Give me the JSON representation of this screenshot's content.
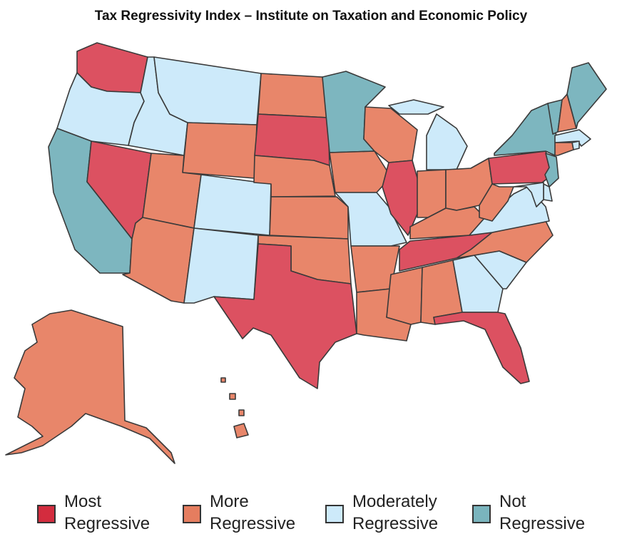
{
  "title": "Tax Regressivity Index – Institute on Taxation and Economic Policy",
  "colors": {
    "most": "#dc5161",
    "more": "#e8866a",
    "moderately": "#cdeafa",
    "not": "#7db6bf"
  },
  "legend": [
    {
      "key": "most",
      "line1": "Most",
      "line2": "Regressive",
      "color": "#d32c3e"
    },
    {
      "key": "more",
      "line1": "More",
      "line2": "Regressive",
      "color": "#e57d5f"
    },
    {
      "key": "moderately",
      "line1": "Moderately",
      "line2": "Regressive",
      "color": "#cdeafa"
    },
    {
      "key": "not",
      "line1": "Not",
      "line2": "Regressive",
      "color": "#7ab4bd"
    }
  ],
  "states": {
    "WA": "most",
    "OR": "moderately",
    "CA": "not",
    "NV": "most",
    "ID": "moderately",
    "MT": "moderately",
    "WY": "more",
    "UT": "more",
    "AZ": "more",
    "CO": "moderately",
    "NM": "moderately",
    "ND": "more",
    "SD": "most",
    "NE": "more",
    "KS": "more",
    "OK": "more",
    "TX": "most",
    "MN": "not",
    "IA": "more",
    "MO": "moderately",
    "AR": "more",
    "LA": "more",
    "WI": "more",
    "IL": "most",
    "MI": "moderately",
    "IN": "more",
    "OH": "more",
    "KY": "more",
    "TN": "most",
    "MS": "more",
    "AL": "more",
    "GA": "moderately",
    "FL": "most",
    "SC": "moderately",
    "NC": "more",
    "VA": "moderately",
    "WV": "more",
    "PA": "most",
    "NY": "not",
    "VT": "not",
    "NH": "more",
    "ME": "not",
    "MA": "moderately",
    "RI": "moderately",
    "CT": "more",
    "NJ": "not",
    "DE": "moderately",
    "MD": "moderately",
    "AK": "more",
    "HI": "more"
  }
}
